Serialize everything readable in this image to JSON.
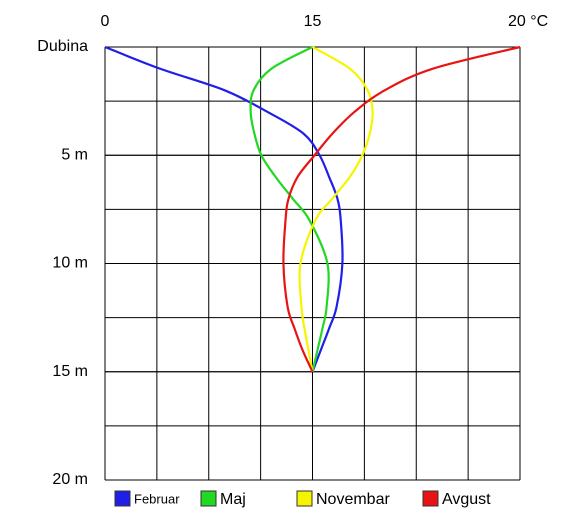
{
  "chart_data": {
    "type": "line",
    "x_axis_position": "top",
    "y_inverted": true,
    "xticks": [
      0,
      15,
      {
        "value": 20,
        "label": "20 °C"
      }
    ],
    "xlim": [
      0,
      20
    ],
    "yticks": [
      {
        "value": 0,
        "label": "Dubina"
      },
      {
        "value": 5,
        "label": "5 m"
      },
      {
        "value": 10,
        "label": "10 m"
      },
      {
        "value": 15,
        "label": "15 m"
      },
      {
        "value": 20,
        "label": "20 m"
      }
    ],
    "ylim": [
      0,
      20
    ],
    "grid": true,
    "legend": "bottom",
    "depths": [
      0,
      1,
      2,
      3,
      4,
      5,
      6,
      7,
      8,
      10,
      12,
      13,
      14,
      15
    ],
    "series": [
      {
        "name": "Februar",
        "color": "#1f1fe8",
        "values": [
          0,
          3.97,
          8.65,
          11.75,
          14.35,
          15.17,
          15.4,
          15.6,
          15.68,
          15.72,
          15.58,
          15.4,
          15.2,
          15
        ]
      },
      {
        "name": "Maj",
        "color": "#22d822",
        "values": [
          15,
          12.04,
          10.74,
          10.53,
          10.8,
          11.3,
          12.33,
          13.56,
          14.78,
          15.36,
          15.34,
          15.24,
          15.12,
          15
        ]
      },
      {
        "name": "Novembar",
        "color": "#f5f500",
        "values": [
          15,
          15.9,
          16.33,
          16.45,
          16.38,
          16.2,
          15.9,
          15.48,
          15.07,
          14.13,
          14.2,
          14.42,
          14.71,
          15
        ]
      },
      {
        "name": "Avgust",
        "color": "#e81414",
        "values": [
          20,
          17.9,
          16.74,
          16.01,
          15.48,
          15.05,
          13.92,
          13.27,
          13.05,
          12.9,
          13.2,
          13.7,
          14.28,
          15
        ]
      }
    ]
  }
}
